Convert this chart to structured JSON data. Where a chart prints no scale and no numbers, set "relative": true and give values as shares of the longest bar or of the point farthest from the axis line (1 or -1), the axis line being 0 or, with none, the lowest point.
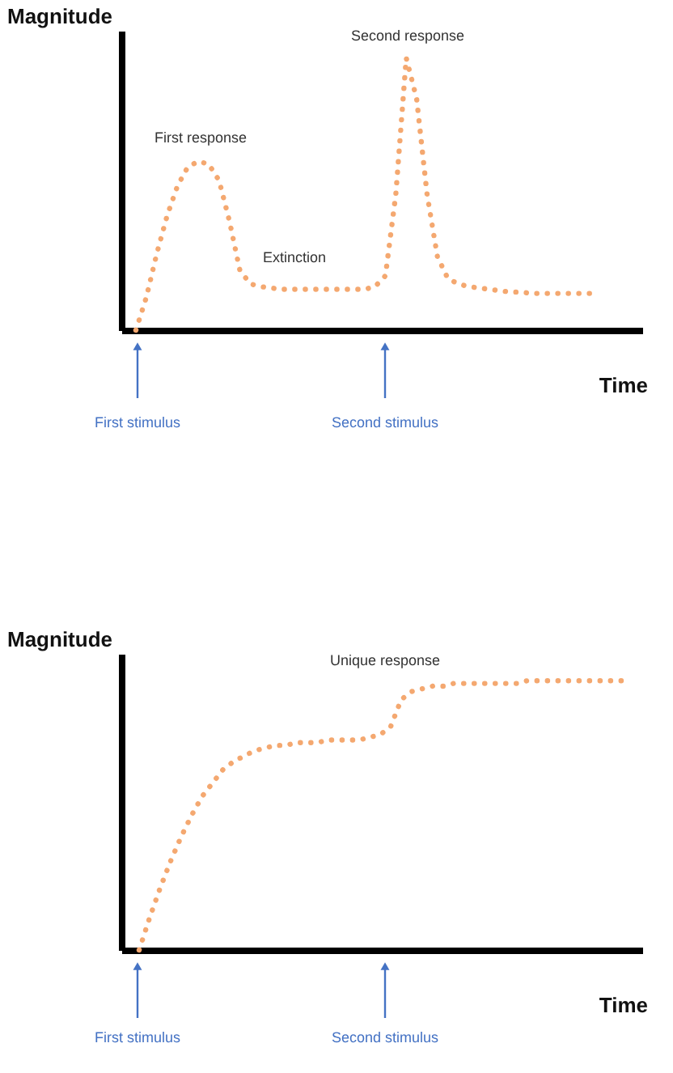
{
  "chart_data": [
    {
      "type": "line",
      "relative": true,
      "xlabel": "Time",
      "ylabel": "Magnitude",
      "line_style": "dotted",
      "categories": [
        null,
        null,
        null,
        null,
        null,
        null,
        null,
        null,
        null,
        null,
        null,
        null,
        null,
        null,
        null,
        null,
        null,
        null,
        null,
        null,
        null,
        null,
        null,
        null,
        null,
        null,
        null,
        null,
        null,
        null,
        null,
        null,
        null,
        null,
        null,
        null,
        null,
        null,
        null,
        null,
        null,
        null,
        null,
        null,
        null
      ],
      "series": [
        {
          "color": "#f4a870",
          "values": [
            0,
            0.12,
            0.28,
            0.42,
            0.53,
            0.6,
            0.62,
            0.61,
            0.55,
            0.4,
            0.22,
            0.17,
            0.16,
            0.155,
            0.15,
            0.15,
            0.15,
            0.15,
            0.15,
            0.15,
            0.15,
            0.15,
            0.15,
            0.16,
            0.2,
            0.5,
            1,
            0.85,
            0.5,
            0.27,
            0.19,
            0.17,
            0.16,
            0.155,
            0.15,
            0.145,
            0.14,
            0.14,
            0.135,
            0.135,
            0.135,
            0.135,
            0.135,
            0.135,
            0.135
          ]
        }
      ],
      "annotations": [
        "First response",
        "Extinction",
        "Second response",
        "First stimulus",
        "Second stimulus"
      ]
    },
    {
      "type": "line",
      "relative": true,
      "xlabel": "Time",
      "ylabel": "Magnitude",
      "line_style": "dotted",
      "categories": [
        null,
        null,
        null,
        null,
        null,
        null,
        null,
        null,
        null,
        null,
        null,
        null,
        null,
        null,
        null,
        null,
        null,
        null,
        null,
        null,
        null,
        null,
        null,
        null,
        null,
        null,
        null,
        null,
        null,
        null,
        null,
        null,
        null,
        null,
        null,
        null,
        null,
        null,
        null,
        null,
        null,
        null,
        null,
        null,
        null,
        null,
        null
      ],
      "series": [
        {
          "color": "#f4a870",
          "values": [
            0,
            0.12,
            0.23,
            0.33,
            0.42,
            0.5,
            0.57,
            0.62,
            0.67,
            0.7,
            0.72,
            0.74,
            0.75,
            0.76,
            0.76,
            0.77,
            0.77,
            0.77,
            0.78,
            0.78,
            0.78,
            0.78,
            0.79,
            0.8,
            0.83,
            0.93,
            0.96,
            0.97,
            0.98,
            0.98,
            0.99,
            0.99,
            0.99,
            0.99,
            0.99,
            0.99,
            0.99,
            1,
            1,
            1,
            1,
            1,
            1,
            1,
            1,
            1,
            1
          ]
        }
      ],
      "annotations": [
        "Unique response",
        "First stimulus",
        "Second stimulus"
      ]
    }
  ]
}
